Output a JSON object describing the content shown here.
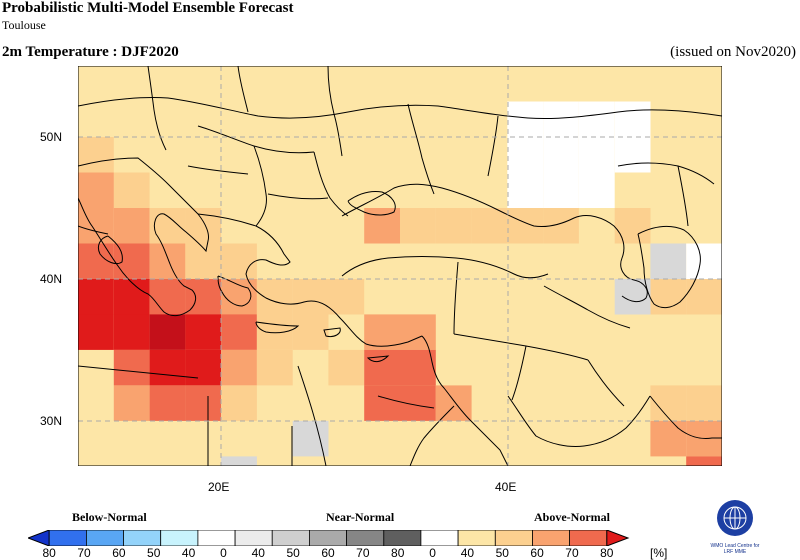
{
  "header": {
    "title": "Probabilistic Multi-Model Ensemble Forecast",
    "subtitle": "Toulouse",
    "variable": "2m Temperature : DJF2020",
    "issued": "(issued on Nov2020)"
  },
  "map": {
    "lat_labels": [
      "50N",
      "40N",
      "30N"
    ],
    "lon_labels": [
      "20E",
      "40E"
    ],
    "colors": {
      "above_40_50": "#fde6a7",
      "above_50_60": "#fcd08f",
      "above_60_70": "#f9a36f",
      "above_70_80": "#f06a4e",
      "above_80": "#e01b1b",
      "above_max": "#c4101a",
      "near_40_50": "#d8d8d8",
      "missing": "#ffffff",
      "coast": "#000000",
      "grid": "#aaaaaa"
    }
  },
  "legend": {
    "categories": {
      "below": "Below-Normal",
      "near": "Near-Normal",
      "above": "Above-Normal"
    },
    "ticks": [
      "80",
      "70",
      "60",
      "50",
      "40",
      "0",
      "40",
      "50",
      "60",
      "70",
      "80",
      "0",
      "40",
      "50",
      "60",
      "70",
      "80"
    ],
    "unit": "[%]",
    "colors": [
      "#1333c9",
      "#3170ee",
      "#59a6f4",
      "#93d3fa",
      "#c8f3fd",
      "#ffffff",
      "#ececec",
      "#cfcfcf",
      "#aaaaaa",
      "#868686",
      "#5f5f5f",
      "#ffffff",
      "#fde6a7",
      "#fcd08f",
      "#f9a36f",
      "#f06a4e",
      "#e01b1b"
    ]
  },
  "logo": {
    "line1": "WMO Lead Centre for",
    "line2": "LRF MME"
  }
}
